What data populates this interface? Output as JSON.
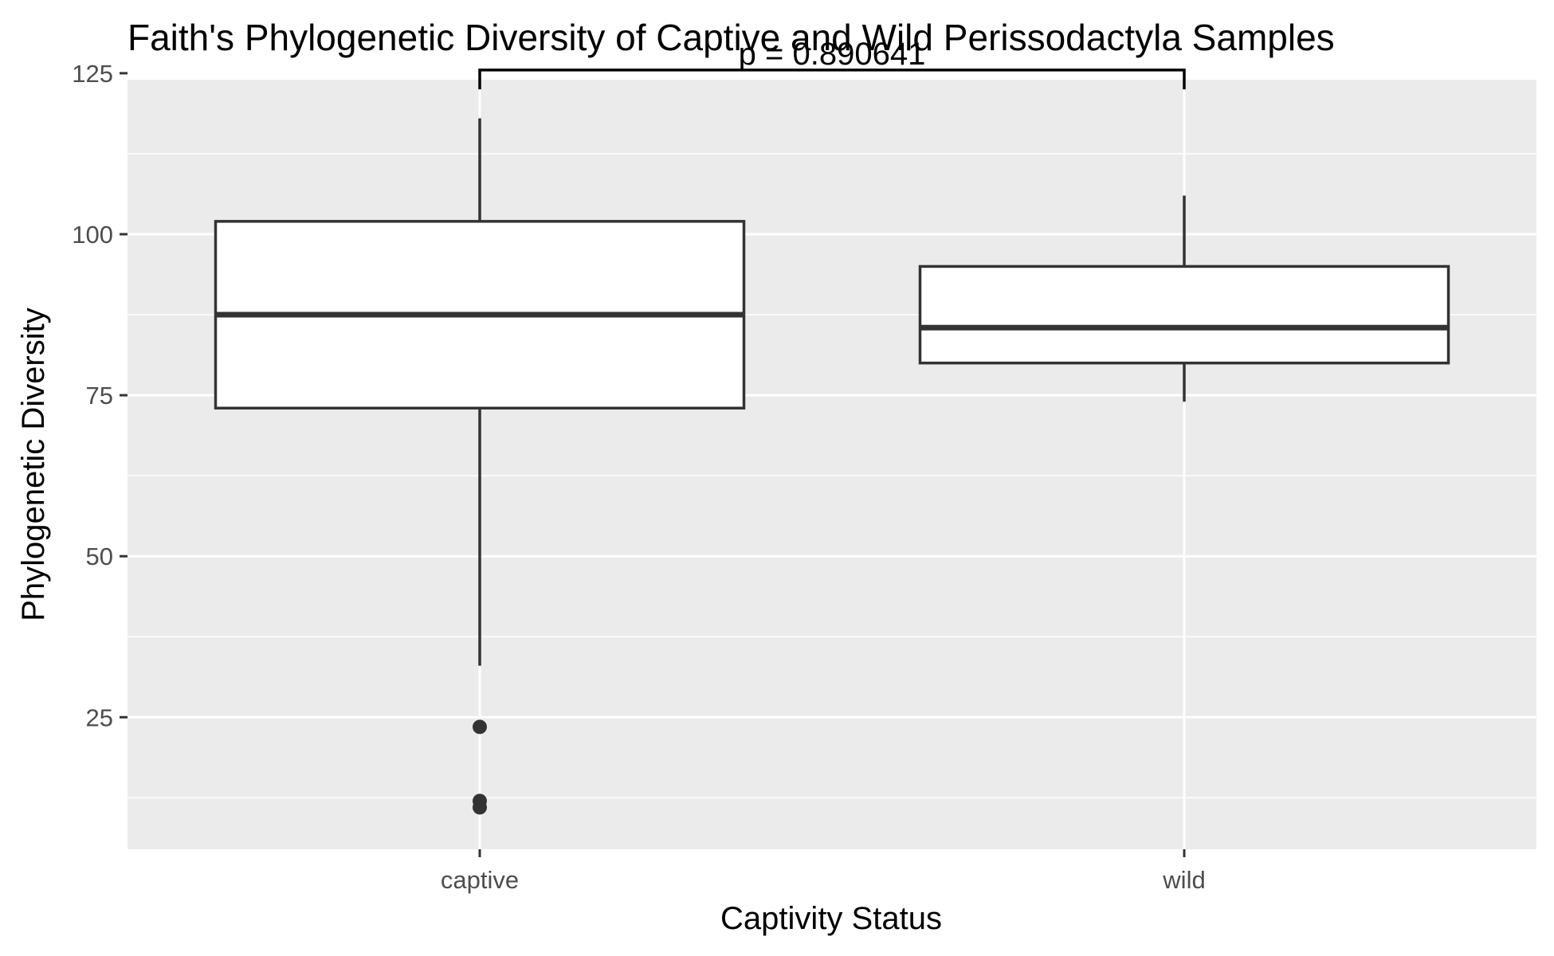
{
  "chart_data": {
    "type": "box",
    "title": "Faith's Phylogenetic Diversity of Captive and Wild Perissodactyla Samples",
    "xlabel": "Captivity Status",
    "ylabel": "Phylogenetic Diversity",
    "categories": [
      "captive",
      "wild"
    ],
    "ylim": [
      4.5,
      124
    ],
    "yticks": [
      25,
      50,
      75,
      100,
      125
    ],
    "grid": true,
    "boxes": [
      {
        "category": "captive",
        "whisker_low": 33,
        "q1": 73,
        "median": 87.5,
        "q3": 102,
        "whisker_high": 118,
        "outliers": [
          23.5,
          12,
          11
        ]
      },
      {
        "category": "wild",
        "whisker_low": 74,
        "q1": 80,
        "median": 85.5,
        "q3": 95,
        "whisker_high": 106,
        "outliers": []
      }
    ],
    "annotation": {
      "text": "p = 0.890641",
      "from": "captive",
      "to": "wild",
      "y": 125.5,
      "tip_low": 122.5
    },
    "colors": {
      "panel": "#ebebeb",
      "grid": "#ffffff",
      "box_fill": "#ffffff",
      "box_line": "#333333"
    }
  }
}
